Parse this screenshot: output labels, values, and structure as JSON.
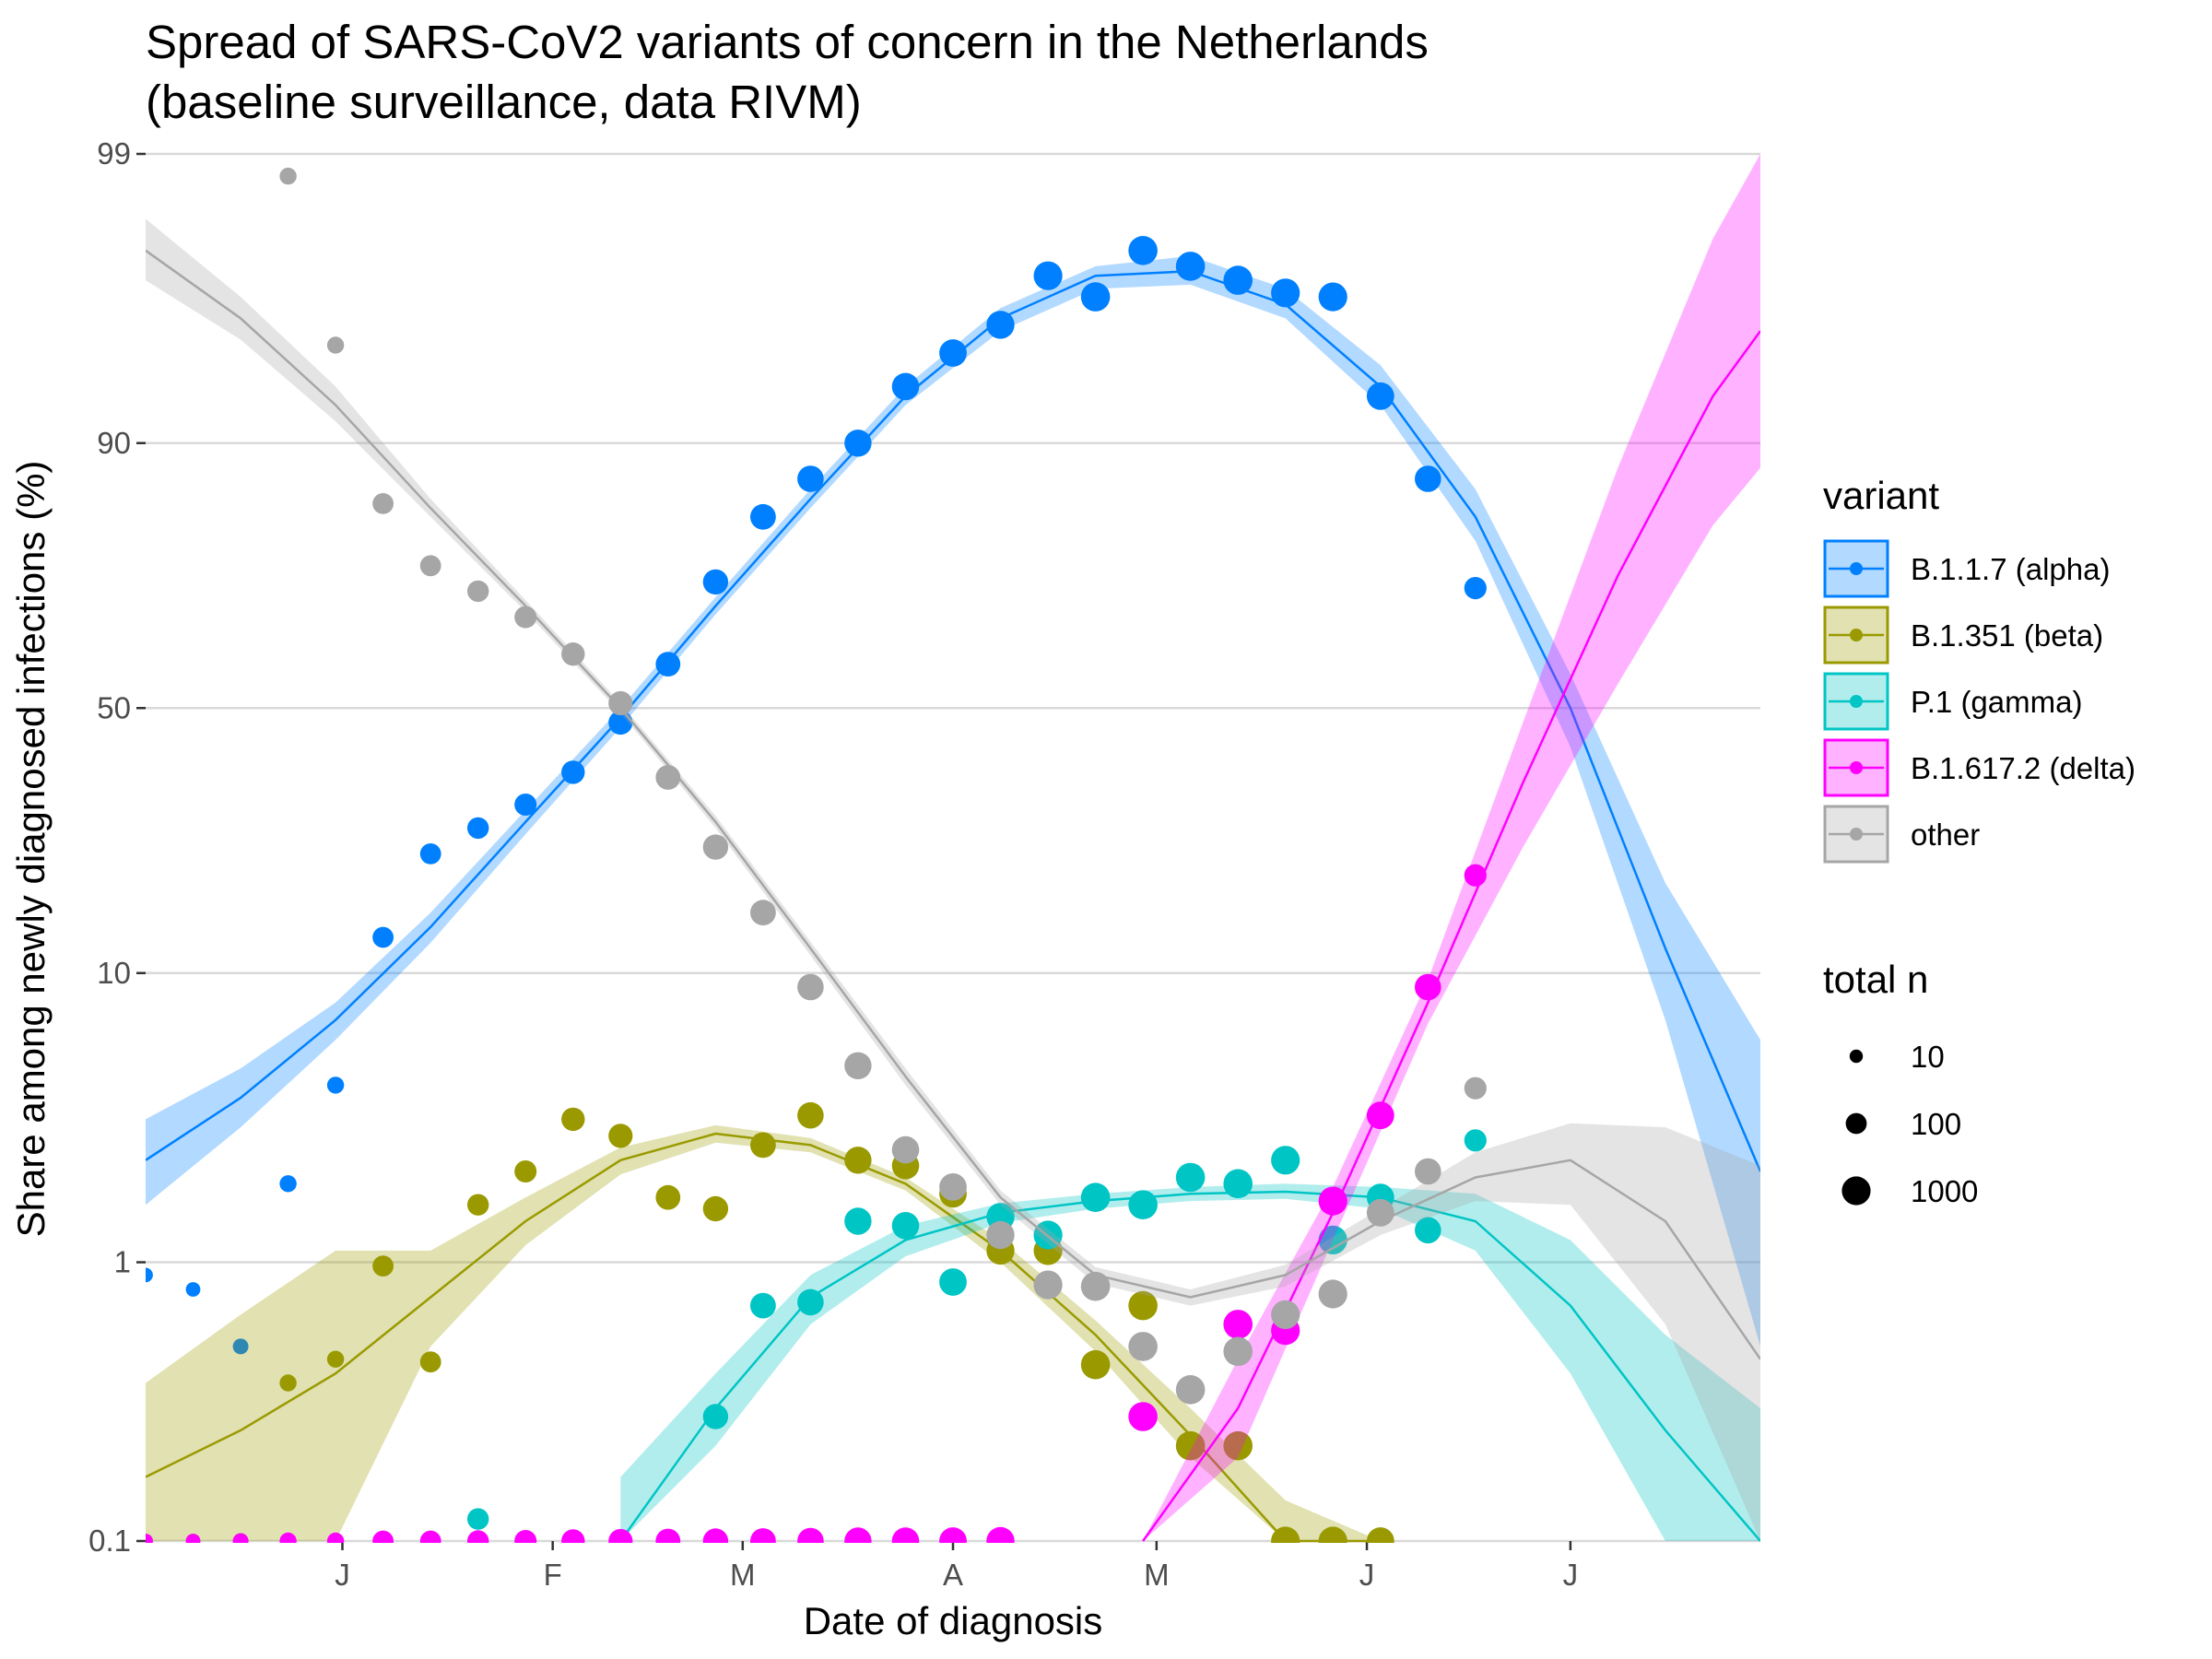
{
  "chart_data": {
    "type": "line",
    "title": "Spread of SARS-CoV2 variants of concern in the Netherlands",
    "subtitle": "(baseline surveillance, data RIVM)",
    "xlabel": "Date of diagnosis",
    "ylabel": "Share among newly diagnosed infections (%)",
    "y_scale": "logit",
    "ylim": [
      0.1,
      99
    ],
    "y_ticks": [
      0.1,
      1,
      10,
      50,
      90,
      99
    ],
    "y_tick_labels": [
      "0.1",
      "1",
      "10",
      "50",
      "90",
      "99"
    ],
    "x_ticks": [
      "2021-01-01",
      "2021-02-01",
      "2021-03-01",
      "2021-04-01",
      "2021-05-01",
      "2021-06-01",
      "2021-07-01"
    ],
    "x_tick_labels": [
      "J",
      "F",
      "M",
      "A",
      "M",
      "J",
      "J"
    ],
    "xlim": [
      "2020-12-03",
      "2021-07-29"
    ],
    "grid": "horizontal major",
    "legend_placement": "right",
    "legend": {
      "variant_title": "variant",
      "size_title": "total n",
      "size_entries": [
        "10",
        "100",
        "1000"
      ]
    },
    "series": [
      {
        "name": "B.1.1.7 (alpha)",
        "color": "#0080FF",
        "points": [
          [
            "2020-12-03",
            0.9
          ],
          [
            "2020-12-10",
            0.8
          ],
          [
            "2020-12-17",
            0.5
          ],
          [
            "2020-12-24",
            1.9
          ],
          [
            "2020-12-31",
            4.2
          ],
          [
            "2021-01-07",
            13
          ],
          [
            "2021-01-14",
            23
          ],
          [
            "2021-01-21",
            27
          ],
          [
            "2021-01-28",
            31
          ],
          [
            "2021-02-04",
            37
          ],
          [
            "2021-02-11",
            47
          ],
          [
            "2021-02-18",
            59
          ],
          [
            "2021-02-25",
            74
          ],
          [
            "2021-03-04",
            83
          ],
          [
            "2021-03-11",
            87
          ],
          [
            "2021-03-18",
            90
          ],
          [
            "2021-03-25",
            93.5
          ],
          [
            "2021-04-01",
            95
          ],
          [
            "2021-04-08",
            96
          ],
          [
            "2021-04-15",
            97.3
          ],
          [
            "2021-04-22",
            96.8
          ],
          [
            "2021-04-29",
            97.8
          ],
          [
            "2021-05-06",
            97.5
          ],
          [
            "2021-05-13",
            97.2
          ],
          [
            "2021-05-20",
            96.9
          ],
          [
            "2021-05-27",
            96.8
          ],
          [
            "2021-06-03",
            93
          ],
          [
            "2021-06-10",
            87
          ],
          [
            "2021-06-17",
            73
          ]
        ],
        "sizes": [
          15,
          15,
          20,
          30,
          30,
          100,
          100,
          120,
          140,
          200,
          250,
          300,
          350,
          400,
          500,
          600,
          650,
          700,
          800,
          1000,
          1100,
          1100,
          1100,
          1100,
          1000,
          1000,
          700,
          500,
          150
        ],
        "fit": [
          [
            "2020-12-03",
            2.3
          ],
          [
            "2020-12-17",
            3.8
          ],
          [
            "2020-12-31",
            7
          ],
          [
            "2021-01-14",
            14
          ],
          [
            "2021-01-28",
            28
          ],
          [
            "2021-02-11",
            48
          ],
          [
            "2021-02-25",
            70
          ],
          [
            "2021-03-11",
            85
          ],
          [
            "2021-03-25",
            93
          ],
          [
            "2021-04-08",
            96.2
          ],
          [
            "2021-04-22",
            97.3
          ],
          [
            "2021-05-06",
            97.4
          ],
          [
            "2021-05-20",
            96.6
          ],
          [
            "2021-06-03",
            93.5
          ],
          [
            "2021-06-17",
            83
          ],
          [
            "2021-07-01",
            50
          ],
          [
            "2021-07-15",
            12
          ],
          [
            "2021-07-29",
            2.1
          ]
        ],
        "ci_low": [
          1.6,
          3,
          6,
          12.5,
          26,
          46,
          68.5,
          84,
          92.5,
          95.8,
          97,
          97.1,
          96.2,
          92.5,
          80,
          42,
          7,
          0.5
        ],
        "ci_high": [
          3.2,
          4.8,
          8,
          15.5,
          30,
          50,
          71.5,
          86,
          93.5,
          96.5,
          97.5,
          97.7,
          97,
          94.5,
          86,
          57,
          19,
          6
        ]
      },
      {
        "name": "B.1.351 (beta)",
        "color": "#9A9A00",
        "points": [
          [
            "2020-12-03",
            0.1
          ],
          [
            "2020-12-10",
            0.1
          ],
          [
            "2020-12-17",
            0.1
          ],
          [
            "2020-12-24",
            0.37
          ],
          [
            "2020-12-31",
            0.45
          ],
          [
            "2021-01-07",
            0.97
          ],
          [
            "2021-01-14",
            0.44
          ],
          [
            "2021-01-21",
            1.6
          ],
          [
            "2021-01-28",
            2.1
          ],
          [
            "2021-02-04",
            3.2
          ],
          [
            "2021-02-11",
            2.8
          ],
          [
            "2021-02-18",
            1.7
          ],
          [
            "2021-02-25",
            1.55
          ],
          [
            "2021-03-04",
            2.6
          ],
          [
            "2021-03-11",
            3.3
          ],
          [
            "2021-03-18",
            2.3
          ],
          [
            "2021-03-25",
            2.2
          ],
          [
            "2021-04-01",
            1.75
          ],
          [
            "2021-04-08",
            1.1
          ],
          [
            "2021-04-15",
            1.1
          ],
          [
            "2021-04-22",
            0.43
          ],
          [
            "2021-04-29",
            0.7
          ],
          [
            "2021-05-06",
            0.22
          ],
          [
            "2021-05-13",
            0.22
          ],
          [
            "2021-05-20",
            0.1
          ],
          [
            "2021-05-27",
            0.1
          ],
          [
            "2021-06-03",
            0.1
          ]
        ],
        "sizes": [
          15,
          15,
          20,
          30,
          30,
          100,
          100,
          120,
          140,
          200,
          250,
          300,
          350,
          400,
          500,
          600,
          650,
          700,
          800,
          1000,
          1100,
          1100,
          1100,
          1100,
          1000,
          1000,
          700
        ],
        "fit": [
          [
            "2020-12-03",
            0.17
          ],
          [
            "2020-12-17",
            0.25
          ],
          [
            "2020-12-31",
            0.4
          ],
          [
            "2021-01-14",
            0.75
          ],
          [
            "2021-01-28",
            1.4
          ],
          [
            "2021-02-11",
            2.3
          ],
          [
            "2021-02-25",
            2.85
          ],
          [
            "2021-03-11",
            2.6
          ],
          [
            "2021-03-25",
            1.9
          ],
          [
            "2021-04-08",
            1.1
          ],
          [
            "2021-04-22",
            0.55
          ],
          [
            "2021-05-06",
            0.24
          ],
          [
            "2021-05-20",
            0.1
          ],
          [
            "2021-06-03",
            0.04
          ]
        ],
        "ci_low": [
          0.05,
          0.06,
          0.1,
          0.5,
          1.15,
          2.05,
          2.65,
          2.45,
          1.8,
          1.0,
          0.48,
          0.2,
          0.07,
          0.02
        ],
        "ci_high": [
          0.37,
          0.65,
          1.1,
          1.1,
          1.7,
          2.55,
          3.05,
          2.75,
          2.0,
          1.2,
          0.62,
          0.3,
          0.14,
          0.07
        ]
      },
      {
        "name": "P.1 (gamma)",
        "color": "#00C5C5",
        "points": [
          [
            "2021-01-21",
            0.12
          ],
          [
            "2021-02-25",
            0.28
          ],
          [
            "2021-03-04",
            0.7
          ],
          [
            "2021-03-11",
            0.72
          ],
          [
            "2021-03-18",
            1.4
          ],
          [
            "2021-03-25",
            1.35
          ],
          [
            "2021-04-01",
            0.85
          ],
          [
            "2021-04-08",
            1.45
          ],
          [
            "2021-04-15",
            1.25
          ],
          [
            "2021-04-22",
            1.7
          ],
          [
            "2021-04-29",
            1.6
          ],
          [
            "2021-05-06",
            2.0
          ],
          [
            "2021-05-13",
            1.9
          ],
          [
            "2021-05-20",
            2.3
          ],
          [
            "2021-05-27",
            1.2
          ],
          [
            "2021-06-03",
            1.7
          ],
          [
            "2021-06-10",
            1.3
          ],
          [
            "2021-06-17",
            2.7
          ]
        ],
        "sizes": [
          120,
          350,
          400,
          500,
          600,
          650,
          700,
          800,
          1000,
          1100,
          1100,
          1100,
          1100,
          1000,
          1000,
          700,
          500,
          150
        ],
        "fit": [
          [
            "2021-02-11",
            0.1
          ],
          [
            "2021-02-25",
            0.3
          ],
          [
            "2021-03-11",
            0.75
          ],
          [
            "2021-03-25",
            1.2
          ],
          [
            "2021-04-08",
            1.5
          ],
          [
            "2021-04-22",
            1.65
          ],
          [
            "2021-05-06",
            1.75
          ],
          [
            "2021-05-20",
            1.78
          ],
          [
            "2021-06-03",
            1.7
          ],
          [
            "2021-06-17",
            1.4
          ],
          [
            "2021-07-01",
            0.7
          ],
          [
            "2021-07-15",
            0.25
          ],
          [
            "2021-07-29",
            0.08
          ]
        ],
        "ci_low": [
          0.06,
          0.22,
          0.6,
          1.05,
          1.38,
          1.55,
          1.65,
          1.68,
          1.55,
          1.1,
          0.4,
          0.1,
          0.02
        ],
        "ci_high": [
          0.17,
          0.4,
          0.9,
          1.35,
          1.62,
          1.75,
          1.85,
          1.9,
          1.85,
          1.75,
          1.2,
          0.55,
          0.3
        ]
      },
      {
        "name": "B.1.617.2 (delta)",
        "color": "#FF00FF",
        "points": [
          [
            "2020-12-03",
            0.1
          ],
          [
            "2020-12-10",
            0.1
          ],
          [
            "2020-12-17",
            0.1
          ],
          [
            "2020-12-24",
            0.1
          ],
          [
            "2020-12-31",
            0.1
          ],
          [
            "2021-01-07",
            0.1
          ],
          [
            "2021-01-14",
            0.1
          ],
          [
            "2021-01-21",
            0.1
          ],
          [
            "2021-01-28",
            0.1
          ],
          [
            "2021-02-04",
            0.1
          ],
          [
            "2021-02-11",
            0.1
          ],
          [
            "2021-02-18",
            0.1
          ],
          [
            "2021-02-25",
            0.1
          ],
          [
            "2021-03-04",
            0.1
          ],
          [
            "2021-03-11",
            0.1
          ],
          [
            "2021-03-18",
            0.1
          ],
          [
            "2021-03-25",
            0.1
          ],
          [
            "2021-04-01",
            0.1
          ],
          [
            "2021-04-08",
            0.1
          ],
          [
            "2021-04-29",
            0.28
          ],
          [
            "2021-05-13",
            0.6
          ],
          [
            "2021-05-20",
            0.57
          ],
          [
            "2021-05-27",
            1.65
          ],
          [
            "2021-06-03",
            3.3
          ],
          [
            "2021-06-10",
            9
          ],
          [
            "2021-06-17",
            20
          ]
        ],
        "sizes": [
          15,
          15,
          20,
          30,
          30,
          100,
          100,
          120,
          140,
          200,
          250,
          300,
          350,
          400,
          500,
          600,
          650,
          700,
          800,
          1100,
          1100,
          1000,
          1000,
          700,
          500,
          150
        ],
        "fit": [
          [
            "2021-04-29",
            0.06
          ],
          [
            "2021-05-13",
            0.3
          ],
          [
            "2021-05-27",
            1.5
          ],
          [
            "2021-06-10",
            8
          ],
          [
            "2021-06-24",
            35
          ],
          [
            "2021-07-08",
            75
          ],
          [
            "2021-07-22",
            93
          ],
          [
            "2021-07-29",
            95.8
          ]
        ],
        "ci_low": [
          0.03,
          0.2,
          1.2,
          6.8,
          24,
          55,
          82,
          88
        ],
        "ci_high": [
          0.1,
          0.45,
          1.85,
          9.5,
          47,
          88,
          98,
          99.5
        ]
      },
      {
        "name": "other",
        "color": "#A6A6A6",
        "points": [
          [
            "2020-12-24",
            98.8
          ],
          [
            "2020-12-31",
            95.3
          ],
          [
            "2021-01-07",
            84.5
          ],
          [
            "2021-01-14",
            76.5
          ],
          [
            "2021-01-21",
            72.5
          ],
          [
            "2021-01-28",
            68
          ],
          [
            "2021-02-04",
            61
          ],
          [
            "2021-02-11",
            51
          ],
          [
            "2021-02-18",
            36
          ],
          [
            "2021-02-25",
            24
          ],
          [
            "2021-03-04",
            15.5
          ],
          [
            "2021-03-11",
            9
          ],
          [
            "2021-03-18",
            4.9
          ],
          [
            "2021-03-25",
            2.5
          ],
          [
            "2021-04-01",
            1.85
          ],
          [
            "2021-04-08",
            1.25
          ],
          [
            "2021-04-15",
            0.83
          ],
          [
            "2021-04-22",
            0.82
          ],
          [
            "2021-04-29",
            0.5
          ],
          [
            "2021-05-06",
            0.35
          ],
          [
            "2021-05-13",
            0.48
          ],
          [
            "2021-05-20",
            0.65
          ],
          [
            "2021-05-27",
            0.77
          ],
          [
            "2021-06-03",
            1.5
          ],
          [
            "2021-06-10",
            2.1
          ],
          [
            "2021-06-17",
            4.1
          ]
        ],
        "sizes": [
          30,
          30,
          100,
          100,
          120,
          140,
          200,
          250,
          300,
          350,
          400,
          500,
          600,
          650,
          700,
          800,
          1000,
          1100,
          1100,
          1100,
          1100,
          1000,
          1000,
          700,
          500,
          150
        ],
        "fit": [
          [
            "2020-12-03",
            97.8
          ],
          [
            "2020-12-17",
            96.2
          ],
          [
            "2020-12-31",
            92.5
          ],
          [
            "2021-01-14",
            84
          ],
          [
            "2021-01-28",
            70
          ],
          [
            "2021-02-11",
            50
          ],
          [
            "2021-02-25",
            28
          ],
          [
            "2021-03-11",
            12
          ],
          [
            "2021-03-25",
            4.5
          ],
          [
            "2021-04-08",
            1.7
          ],
          [
            "2021-04-22",
            0.9
          ],
          [
            "2021-05-06",
            0.75
          ],
          [
            "2021-05-20",
            0.9
          ],
          [
            "2021-06-03",
            1.4
          ],
          [
            "2021-06-17",
            2.0
          ],
          [
            "2021-07-01",
            2.3
          ],
          [
            "2021-07-15",
            1.4
          ],
          [
            "2021-07-29",
            0.45
          ]
        ],
        "ci_low": [
          97.2,
          95.5,
          91.5,
          83,
          69,
          49,
          27,
          11.4,
          4.2,
          1.6,
          0.84,
          0.7,
          0.82,
          1.25,
          1.65,
          1.6,
          0.6,
          0.08
        ],
        "ci_high": [
          98.3,
          96.8,
          93.5,
          85,
          71,
          51,
          29,
          12.6,
          4.8,
          1.8,
          0.96,
          0.8,
          0.98,
          1.55,
          2.45,
          3.1,
          3.0,
          2.2
        ]
      }
    ]
  }
}
